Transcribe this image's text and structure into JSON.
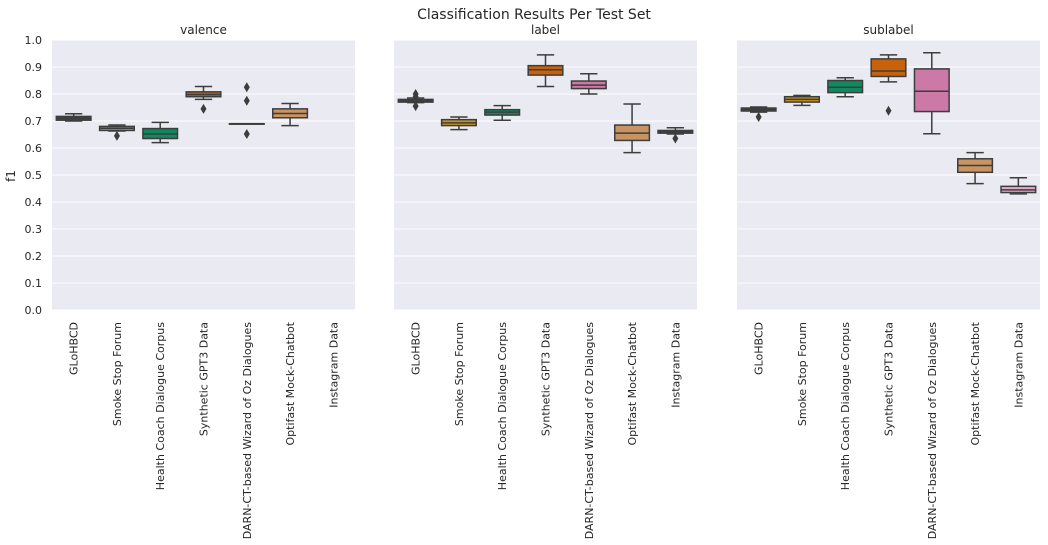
{
  "figure": {
    "title": "Classification Results Per Test Set"
  },
  "chart_data": {
    "type": "box",
    "title": "Classification Results Per Test Set",
    "ylabel": "f1",
    "ylim": [
      0.0,
      1.0
    ],
    "yticks": [
      "0.0",
      "0.1",
      "0.2",
      "0.3",
      "0.4",
      "0.5",
      "0.6",
      "0.7",
      "0.8",
      "0.9",
      "1.0"
    ],
    "ytick_values": [
      0.0,
      0.1,
      0.2,
      0.3,
      0.4,
      0.5,
      0.6,
      0.7,
      0.8,
      0.9,
      1.0
    ],
    "grid": true,
    "categories": [
      "GLoHBCD",
      "Smoke Stop Forum",
      "Health Coach Dialogue Corpus",
      "Synthetic GPT3 Data",
      "DARN-CT-based Wizard of Oz Dialogues",
      "Optifast Mock-Chatbot",
      "Instagram Data"
    ],
    "colors": [
      "#2f4f4f",
      "#c8961e",
      "#0f8a60",
      "#c8620a",
      "#cc79a7",
      "#c89464",
      "#e5a9cc"
    ],
    "panels": [
      {
        "title": "valence",
        "boxes": [
          {
            "category": "GLoHBCD",
            "whislo": 0.7,
            "q1": 0.703,
            "med": 0.71,
            "q3": 0.717,
            "whishi": 0.727,
            "fliers": []
          },
          {
            "category": "Smoke Stop Forum",
            "whislo": 0.663,
            "q1": 0.665,
            "med": 0.673,
            "q3": 0.68,
            "whishi": 0.685,
            "fliers": [
              0.645
            ]
          },
          {
            "category": "Health Coach Dialogue Corpus",
            "whislo": 0.62,
            "q1": 0.635,
            "med": 0.652,
            "q3": 0.672,
            "whishi": 0.695,
            "fliers": []
          },
          {
            "category": "Synthetic GPT3 Data",
            "whislo": 0.78,
            "q1": 0.79,
            "med": 0.798,
            "q3": 0.808,
            "whishi": 0.828,
            "fliers": [
              0.745
            ]
          },
          {
            "category": "DARN-CT-based Wizard of Oz Dialogues",
            "whislo": 0.69,
            "q1": 0.69,
            "med": 0.69,
            "q3": 0.69,
            "whishi": 0.69,
            "fliers": [
              0.825,
              0.775,
              0.652
            ]
          },
          {
            "category": "Optifast Mock-Chatbot",
            "whislo": 0.683,
            "q1": 0.712,
            "med": 0.728,
            "q3": 0.745,
            "whishi": 0.765,
            "fliers": []
          },
          {
            "category": "Instagram Data",
            "whislo": null,
            "q1": null,
            "med": null,
            "q3": null,
            "whishi": null,
            "fliers": []
          }
        ]
      },
      {
        "title": "label",
        "boxes": [
          {
            "category": "GLoHBCD",
            "whislo": 0.768,
            "q1": 0.77,
            "med": 0.775,
            "q3": 0.78,
            "whishi": 0.785,
            "fliers": [
              0.8,
              0.79,
              0.755
            ]
          },
          {
            "category": "Smoke Stop Forum",
            "whislo": 0.668,
            "q1": 0.683,
            "med": 0.693,
            "q3": 0.705,
            "whishi": 0.715,
            "fliers": []
          },
          {
            "category": "Health Coach Dialogue Corpus",
            "whislo": 0.703,
            "q1": 0.722,
            "med": 0.733,
            "q3": 0.742,
            "whishi": 0.757,
            "fliers": []
          },
          {
            "category": "Synthetic GPT3 Data",
            "whislo": 0.828,
            "q1": 0.87,
            "med": 0.89,
            "q3": 0.905,
            "whishi": 0.945,
            "fliers": []
          },
          {
            "category": "DARN-CT-based Wizard of Oz Dialogues",
            "whislo": 0.8,
            "q1": 0.82,
            "med": 0.833,
            "q3": 0.848,
            "whishi": 0.875,
            "fliers": []
          },
          {
            "category": "Optifast Mock-Chatbot",
            "whislo": 0.583,
            "q1": 0.628,
            "med": 0.655,
            "q3": 0.685,
            "whishi": 0.763,
            "fliers": []
          },
          {
            "category": "Instagram Data",
            "whislo": 0.652,
            "q1": 0.655,
            "med": 0.66,
            "q3": 0.665,
            "whishi": 0.675,
            "fliers": [
              0.635
            ]
          }
        ]
      },
      {
        "title": "sublabel",
        "boxes": [
          {
            "category": "GLoHBCD",
            "whislo": 0.733,
            "q1": 0.737,
            "med": 0.743,
            "q3": 0.748,
            "whishi": 0.752,
            "fliers": [
              0.715
            ]
          },
          {
            "category": "Smoke Stop Forum",
            "whislo": 0.758,
            "q1": 0.77,
            "med": 0.78,
            "q3": 0.79,
            "whishi": 0.795,
            "fliers": []
          },
          {
            "category": "Health Coach Dialogue Corpus",
            "whislo": 0.79,
            "q1": 0.805,
            "med": 0.825,
            "q3": 0.85,
            "whishi": 0.86,
            "fliers": []
          },
          {
            "category": "Synthetic GPT3 Data",
            "whislo": 0.845,
            "q1": 0.865,
            "med": 0.885,
            "q3": 0.93,
            "whishi": 0.945,
            "fliers": [
              0.738
            ]
          },
          {
            "category": "DARN-CT-based Wizard of Oz Dialogues",
            "whislo": 0.653,
            "q1": 0.735,
            "med": 0.81,
            "q3": 0.893,
            "whishi": 0.953,
            "fliers": []
          },
          {
            "category": "Optifast Mock-Chatbot",
            "whislo": 0.468,
            "q1": 0.51,
            "med": 0.535,
            "q3": 0.56,
            "whishi": 0.583,
            "fliers": []
          },
          {
            "category": "Instagram Data",
            "whislo": 0.43,
            "q1": 0.435,
            "med": 0.445,
            "q3": 0.458,
            "whishi": 0.49,
            "fliers": []
          }
        ]
      }
    ]
  }
}
